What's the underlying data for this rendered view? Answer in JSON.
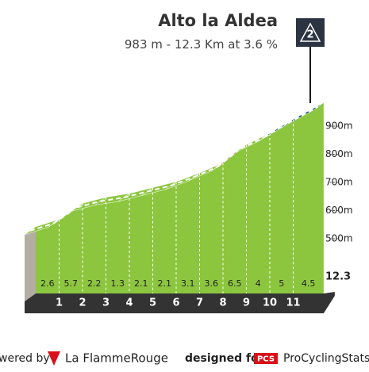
{
  "chart_data": {
    "type": "profile",
    "title": "Alto la Aldea",
    "subtitle_parts": [
      983,
      " m - ",
      12.3,
      " Km at ",
      3.6,
      " %"
    ],
    "badge": "2",
    "km_marks": [
      1,
      2,
      3,
      4,
      5,
      6,
      7,
      8,
      9,
      10,
      11,
      12.3
    ],
    "gradients": [
      2.6,
      5.7,
      2.2,
      1.3,
      2.1,
      2.1,
      3.1,
      3.6,
      6.5,
      4.0,
      5.0,
      4.5
    ],
    "segment_colors": [
      "#8cc63f",
      "#1f5a8a",
      "#8cc63f",
      "#8cc63f",
      "#8cc63f",
      "#8cc63f",
      "#8cc63f",
      "#8cc63f",
      "#e0101e",
      "#8cc63f",
      "#1f5a8a",
      "#1f5a8a"
    ],
    "yticks": [
      {
        "value": 500,
        "label": "500m"
      },
      {
        "value": 600,
        "label": "600m"
      },
      {
        "value": 700,
        "label": "700m"
      },
      {
        "value": 800,
        "label": "800m"
      },
      {
        "value": 900,
        "label": "900m"
      }
    ],
    "footer": {
      "powered": "wered by",
      "brand": "La FlammeRouge",
      "designed": "designed for",
      "pcs": "PCS",
      "pcs_name": "ProCyclingStats"
    }
  }
}
